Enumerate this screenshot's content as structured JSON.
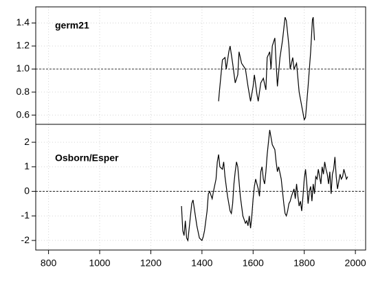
{
  "chart_data": [
    {
      "type": "line",
      "title": "germ21",
      "x": [
        1465,
        1468,
        1480,
        1490,
        1495,
        1505,
        1510,
        1520,
        1530,
        1540,
        1545,
        1555,
        1570,
        1580,
        1590,
        1600,
        1605,
        1615,
        1620,
        1630,
        1640,
        1650,
        1655,
        1665,
        1670,
        1675,
        1685,
        1690,
        1695,
        1705,
        1715,
        1725,
        1730,
        1740,
        1745,
        1755,
        1760,
        1770,
        1780,
        1795,
        1800,
        1805,
        1815,
        1825,
        1832,
        1835,
        1840
      ],
      "series": [
        {
          "name": "germ21",
          "color": "#000000",
          "values": [
            0.72,
            0.8,
            1.08,
            1.1,
            1.0,
            1.15,
            1.2,
            1.05,
            0.88,
            0.95,
            1.15,
            1.05,
            1.0,
            0.85,
            0.72,
            0.85,
            0.95,
            0.78,
            0.72,
            0.88,
            0.92,
            0.82,
            1.1,
            1.15,
            1.0,
            1.2,
            1.27,
            1.05,
            0.85,
            1.1,
            1.25,
            1.45,
            1.42,
            1.2,
            1.0,
            1.1,
            1.0,
            1.05,
            0.8,
            0.62,
            0.56,
            0.58,
            0.85,
            1.15,
            1.43,
            1.45,
            1.25
          ]
        }
      ],
      "xlim": [
        750,
        2040
      ],
      "ylim": [
        0.52,
        1.54
      ],
      "yticks": [
        0.6,
        0.8,
        {
          "value": 1,
          "label": "1.0"
        },
        1.2,
        1.4
      ],
      "hline": 1,
      "grid": true
    },
    {
      "type": "line",
      "title": "Osborn/Esper",
      "x": [
        1320,
        1325,
        1330,
        1335,
        1340,
        1345,
        1350,
        1360,
        1365,
        1370,
        1380,
        1390,
        1400,
        1405,
        1410,
        1420,
        1425,
        1430,
        1440,
        1445,
        1455,
        1460,
        1465,
        1470,
        1480,
        1485,
        1490,
        1500,
        1510,
        1515,
        1520,
        1525,
        1530,
        1535,
        1540,
        1545,
        1550,
        1560,
        1570,
        1575,
        1580,
        1585,
        1590,
        1595,
        1600,
        1605,
        1610,
        1620,
        1625,
        1630,
        1635,
        1640,
        1645,
        1650,
        1655,
        1660,
        1665,
        1670,
        1675,
        1685,
        1690,
        1695,
        1700,
        1710,
        1715,
        1720,
        1725,
        1730,
        1735,
        1740,
        1745,
        1750,
        1760,
        1765,
        1770,
        1775,
        1780,
        1785,
        1790,
        1795,
        1800,
        1805,
        1810,
        1815,
        1820,
        1825,
        1830,
        1835,
        1840,
        1845,
        1850,
        1855,
        1860,
        1865,
        1870,
        1875,
        1880,
        1885,
        1890,
        1895,
        1900,
        1905,
        1910,
        1915,
        1920,
        1925,
        1930,
        1935,
        1940,
        1945,
        1950,
        1955,
        1960,
        1965,
        1970
      ],
      "series": [
        {
          "name": "Osborn/Esper",
          "color": "#000000",
          "values": [
            -0.6,
            -1.6,
            -1.8,
            -1.2,
            -1.9,
            -2.0,
            -1.5,
            -0.5,
            -0.35,
            -0.7,
            -1.4,
            -1.9,
            -2.0,
            -1.85,
            -1.6,
            -0.8,
            -0.1,
            0.0,
            -0.3,
            0.0,
            0.5,
            1.2,
            1.5,
            1.0,
            0.9,
            1.2,
            0.6,
            -0.2,
            -0.8,
            -0.9,
            -0.5,
            0.3,
            0.8,
            1.2,
            1.0,
            0.4,
            -0.2,
            -1.0,
            -1.3,
            -1.2,
            -1.4,
            -1.0,
            -1.5,
            -1.0,
            -0.3,
            0.2,
            0.5,
            0.1,
            -0.2,
            0.8,
            1.0,
            0.5,
            0.3,
            0.8,
            1.5,
            2.0,
            2.5,
            2.2,
            1.9,
            1.7,
            1.2,
            0.8,
            1.0,
            0.5,
            0.0,
            -0.5,
            -0.9,
            -1.0,
            -0.8,
            -0.5,
            -0.4,
            -0.2,
            0.1,
            -0.3,
            0.3,
            -0.2,
            -0.6,
            -0.4,
            -0.8,
            -0.2,
            0.5,
            0.9,
            0.3,
            -0.5,
            0.0,
            0.2,
            -0.4,
            0.3,
            -0.1,
            0.6,
            0.5,
            0.9,
            0.6,
            0.3,
            1.0,
            0.7,
            1.2,
            0.9,
            0.7,
            0.3,
            0.8,
            -0.1,
            0.7,
            0.9,
            1.4,
            0.6,
            0.1,
            0.4,
            0.7,
            0.5,
            0.6,
            0.9,
            0.7,
            0.5,
            0.6
          ]
        }
      ],
      "xlim": [
        750,
        2040
      ],
      "ylim": [
        -2.39,
        2.73
      ],
      "xticks": [
        800,
        1000,
        1200,
        1400,
        1600,
        1800,
        2000
      ],
      "yticks": [
        -2,
        -1,
        0,
        1,
        2
      ],
      "hline": 0,
      "grid": true
    }
  ]
}
